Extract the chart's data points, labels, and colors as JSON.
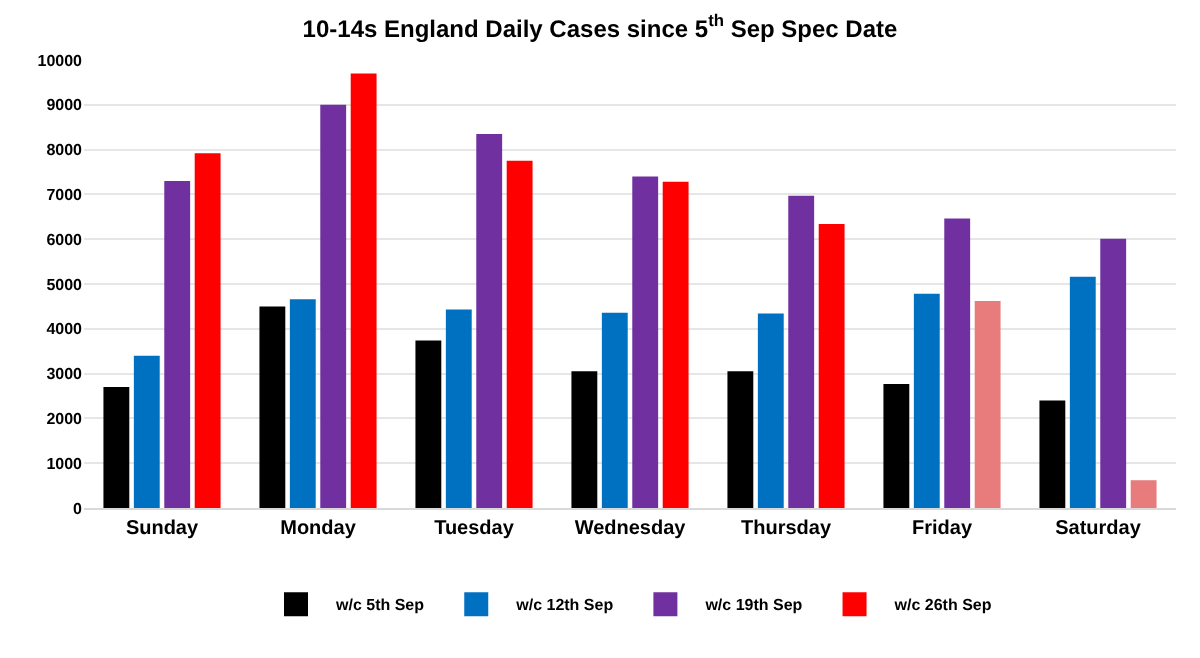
{
  "chart_data": {
    "type": "bar",
    "title": "10-14s England Daily Cases since 5$^{th}$ Sep Spec Date",
    "categories": [
      "Sunday",
      "Monday",
      "Tuesday",
      "Wednesday",
      "Thursday",
      "Friday",
      "Saturday"
    ],
    "series": [
      {
        "name": "w/c 5th Sep",
        "color": "#000000",
        "values": [
          2700,
          4500,
          3740,
          3050,
          3050,
          2770,
          2400
        ]
      },
      {
        "name": "w/c 12th Sep",
        "color": "#0070c0",
        "values": [
          3400,
          4660,
          4430,
          4360,
          4340,
          4780,
          5160
        ]
      },
      {
        "name": "w/c 19th Sep",
        "color": "#7030a0",
        "values": [
          7300,
          9000,
          8350,
          7400,
          6970,
          6460,
          6010
        ]
      },
      {
        "name": "w/c 26th Sep",
        "color": "#ff0000",
        "colors": [
          null,
          null,
          null,
          null,
          null,
          "#e87c7c",
          "#e87c7c"
        ],
        "values": [
          7920,
          9700,
          7750,
          7280,
          6340,
          4620,
          620
        ]
      }
    ],
    "ylim": [
      0,
      10000
    ],
    "yticks": [
      0,
      1000,
      2000,
      3000,
      4000,
      5000,
      6000,
      7000,
      8000,
      9000,
      10000
    ],
    "grid": "y",
    "legend": "bottom"
  }
}
